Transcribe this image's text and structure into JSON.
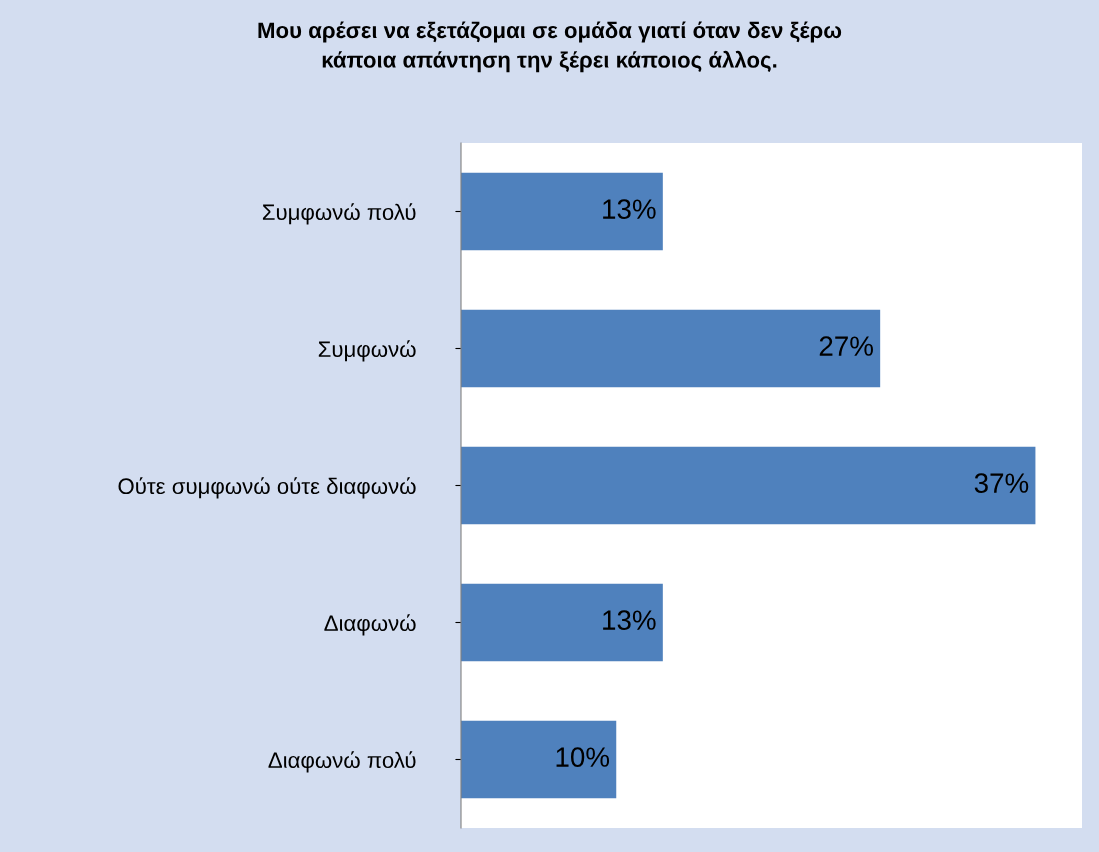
{
  "chart_data": {
    "type": "bar",
    "orientation": "horizontal",
    "title": "Μου αρέσει να εξετάζομαι σε ομάδα γιατί όταν δεν ξέρω\nκάποια απάντηση την ξέρει κάποιος άλλος.",
    "categories": [
      "Συμφωνώ πολύ",
      "Συμφωνώ",
      "Ούτε συμφωνώ ούτε διαφωνώ",
      "Διαφωνώ",
      "Διαφωνώ πολύ"
    ],
    "values": [
      13,
      27,
      37,
      13,
      10
    ],
    "value_labels": [
      "13%",
      "27%",
      "37%",
      "13%",
      "10%"
    ],
    "color": "#4f81bd",
    "xlim": [
      0,
      40
    ],
    "tick_labels": "y"
  }
}
